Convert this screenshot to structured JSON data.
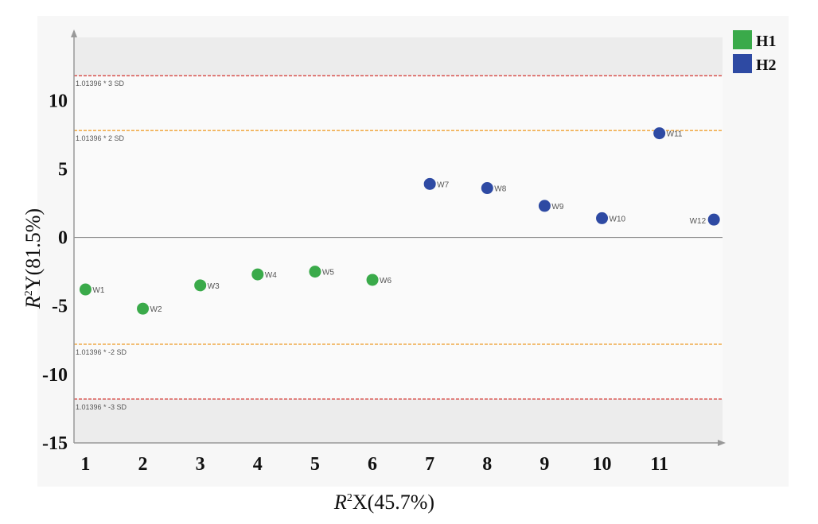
{
  "chart_data": {
    "type": "scatter",
    "xlabel": {
      "main": "R",
      "sup": "2",
      "rest": "X(45.7%)"
    },
    "ylabel": {
      "main": "R",
      "sup": "2",
      "rest": "Y(81.5%)"
    },
    "xlim": [
      0.8,
      12.1
    ],
    "ylim": [
      -15,
      14.6
    ],
    "x_ticks": [
      "1",
      "2",
      "3",
      "4",
      "5",
      "6",
      "7",
      "8",
      "9",
      "10",
      "11"
    ],
    "y_ticks": [
      "10",
      "5",
      "0",
      "-5",
      "-10",
      "-15"
    ],
    "grid": false,
    "legend_position": "top-right",
    "reference_lines": [
      {
        "y": 11.8,
        "label": "1.01396 * 3 SD",
        "color": "#d9534f",
        "shaded": true
      },
      {
        "y": 7.8,
        "label": "1.01396 * 2 SD",
        "color": "#f0ad4e",
        "shaded": false
      },
      {
        "y": -7.8,
        "label": "1.01396 * -2 SD",
        "color": "#f0ad4e",
        "shaded": false
      },
      {
        "y": -11.8,
        "label": "1.01396 * -3 SD",
        "color": "#d9534f",
        "shaded": true
      }
    ],
    "series": [
      {
        "name": "H1",
        "color": "#3aaa4a",
        "points": [
          {
            "x": 1,
            "y": -3.8,
            "label": "W1"
          },
          {
            "x": 2,
            "y": -5.2,
            "label": "W2"
          },
          {
            "x": 3,
            "y": -3.5,
            "label": "W3"
          },
          {
            "x": 4,
            "y": -2.7,
            "label": "W4"
          },
          {
            "x": 5,
            "y": -2.5,
            "label": "W5"
          },
          {
            "x": 6,
            "y": -3.1,
            "label": "W6"
          }
        ]
      },
      {
        "name": "H2",
        "color": "#2e4aa3",
        "points": [
          {
            "x": 7,
            "y": 3.9,
            "label": "W7"
          },
          {
            "x": 8,
            "y": 3.6,
            "label": "W8"
          },
          {
            "x": 9,
            "y": 2.3,
            "label": "W9"
          },
          {
            "x": 10,
            "y": 1.4,
            "label": "W10"
          },
          {
            "x": 11,
            "y": 7.6,
            "label": "W11"
          },
          {
            "x": 11.95,
            "y": 1.3,
            "label": "W12",
            "label_side": "left"
          }
        ]
      }
    ]
  }
}
